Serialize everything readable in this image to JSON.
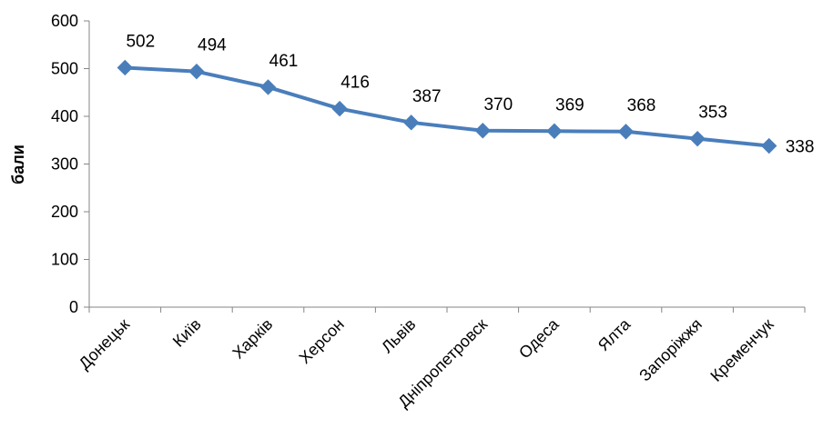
{
  "chart_data": {
    "type": "line",
    "title": "",
    "xlabel": "",
    "ylabel": "бали",
    "ylim": [
      0,
      600
    ],
    "yticks": [
      0,
      100,
      200,
      300,
      400,
      500,
      600
    ],
    "grid": false,
    "legend": "none",
    "categories": [
      "Донецьк",
      "Київ",
      "Харків",
      "Херсон",
      "Львів",
      "Дніпропетровск",
      "Одеса",
      "Ялта",
      "Запоріжжя",
      "Кременчук"
    ],
    "series": [
      {
        "values": [
          502,
          494,
          461,
          416,
          387,
          370,
          369,
          368,
          353,
          338
        ],
        "color": "#4a7ebb",
        "marker": "diamond"
      }
    ],
    "data_labels": [
      "502",
      "494",
      "461",
      "416",
      "387",
      "370",
      "369",
      "368",
      "353",
      "338"
    ]
  }
}
